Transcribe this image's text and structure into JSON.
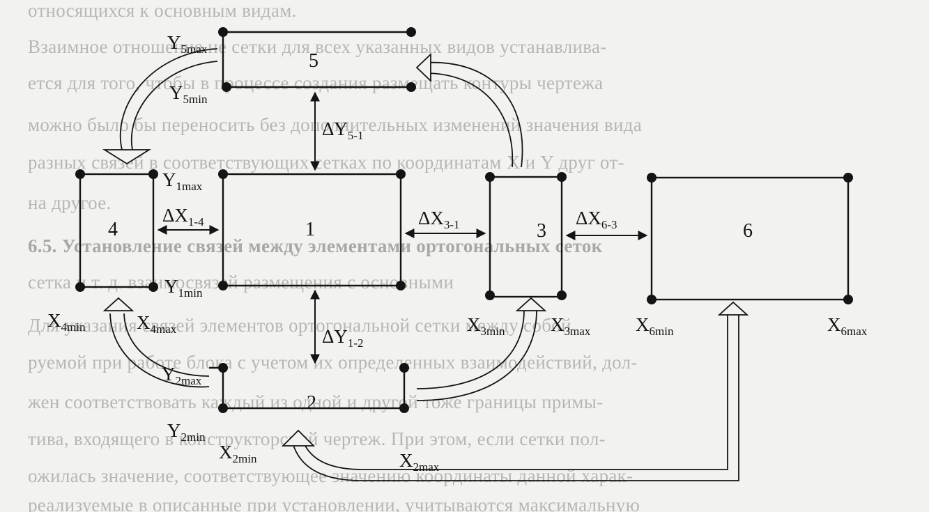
{
  "background_text": [
    "относящихся к основным видам.",
    "Взаимное отношение не сетки для всех указанных видов устанавлива-",
    "ется для того, чтобы в процессе создания размещать контуры чертежа",
    "можно было бы переносить без дополнительных изменений значения вида",
    "разных связей в соответствующих сетках по координатам X и Y друг от-",
    "на другое.",
    "6.5. Установление связей между элементами ортогональных сеток",
    "сетка и т. д. взаимосвязей размещения с основными",
    "Для указания связей элементов ортогональной сетки между собой",
    "руемой при работе блока с учетом их определенных взаимодействий, дол-",
    "жен соответствовать каждый из одной и другой тоже границы примы-",
    "тива, входящего в конструкторский чертеж. При этом, если сетки пол-",
    "ожилась значение, соответствующее значению координаты данной харак-",
    "реализуемые в описанные при установлении, учитываются максимальную"
  ],
  "blocks": [
    {
      "id": "block-1",
      "number": "1"
    },
    {
      "id": "block-2",
      "number": "2"
    },
    {
      "id": "block-3",
      "number": "3"
    },
    {
      "id": "block-4",
      "number": "4"
    },
    {
      "id": "block-5",
      "number": "5"
    },
    {
      "id": "block-6",
      "number": "6"
    }
  ],
  "labels": {
    "y5max": {
      "base": "Y",
      "sub": "5max"
    },
    "y5min": {
      "base": "Y",
      "sub": "5min"
    },
    "y1max": {
      "base": "Y",
      "sub": "1max"
    },
    "y1min": {
      "base": "Y",
      "sub": "1min"
    },
    "y2max": {
      "base": "Y",
      "sub": "2max"
    },
    "y2min": {
      "base": "Y",
      "sub": "2min"
    },
    "x4min": {
      "base": "X",
      "sub": "4min"
    },
    "x4max": {
      "base": "X",
      "sub": "4max"
    },
    "x3min": {
      "base": "X",
      "sub": "3min"
    },
    "x3max": {
      "base": "X",
      "sub": "3max"
    },
    "x6min": {
      "base": "X",
      "sub": "6min"
    },
    "x6max": {
      "base": "X",
      "sub": "6max"
    },
    "x2min": {
      "base": "X",
      "sub": "2min"
    },
    "x2max": {
      "base": "X",
      "sub": "2max"
    },
    "dy51": {
      "base": "ΔY",
      "sub": "5-1"
    },
    "dx14": {
      "base": "ΔX",
      "sub": "1-4"
    },
    "dx31": {
      "base": "ΔX",
      "sub": "3-1"
    },
    "dx63": {
      "base": "ΔX",
      "sub": "6-3"
    },
    "dy12": {
      "base": "ΔY",
      "sub": "1-2"
    }
  },
  "colors": {
    "ink": "#141414",
    "background": "#f2f2f0",
    "ghost_text": "#b7b7b2"
  }
}
